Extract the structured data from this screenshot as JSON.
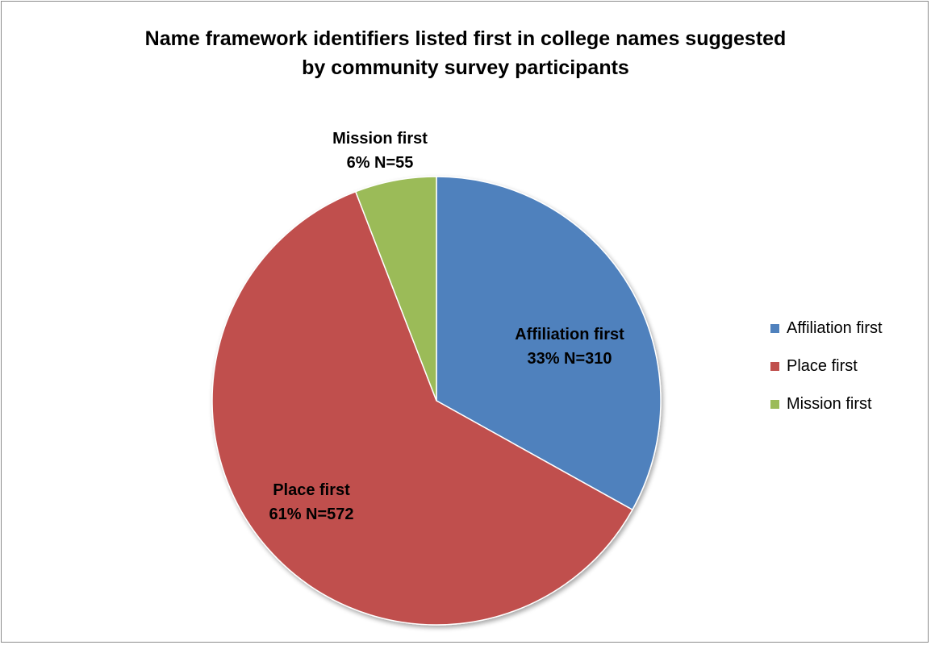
{
  "chart_data": {
    "type": "pie",
    "title_lines": [
      "Name framework identifiers listed first in college names suggested",
      "by community survey participants"
    ],
    "slices": [
      {
        "name": "Affiliation first",
        "percent": 33,
        "count": 310,
        "percent_label": "33% N=310",
        "color": "#4f81bd"
      },
      {
        "name": "Place first",
        "percent": 61,
        "count": 572,
        "percent_label": "61% N=572",
        "color": "#c0504d"
      },
      {
        "name": "Mission first",
        "percent": 6,
        "count": 55,
        "percent_label": "6% N=55",
        "color": "#9bbb59"
      }
    ],
    "start_angle_deg": 0,
    "direction": "clockwise",
    "legend": {
      "position": "right",
      "entries": [
        "Affiliation first",
        "Place first",
        "Mission first"
      ]
    }
  }
}
